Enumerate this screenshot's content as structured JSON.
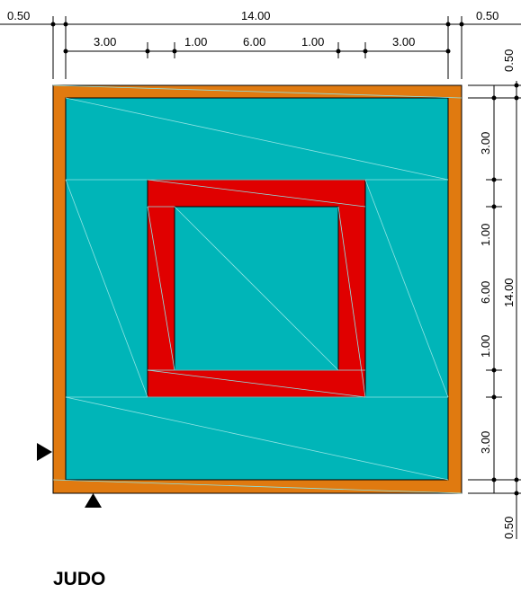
{
  "title": "JUDO",
  "colors": {
    "border": "#e07a10",
    "mat": "#00b5b8",
    "danger": "#e00000",
    "seam": "#8fe3e3",
    "line": "#000000"
  },
  "dimensions": {
    "top_overall": {
      "left_margin": "0.50",
      "total": "14.00",
      "right_margin": "0.50"
    },
    "top_segments": [
      "3.00",
      "1.00",
      "6.00",
      "1.00",
      "3.00"
    ],
    "right_overall": {
      "top_margin": "0.50",
      "total": "14.00",
      "bottom_margin": "0.50"
    },
    "right_segments": [
      "3.00",
      "1.00",
      "6.00",
      "1.00",
      "3.00"
    ]
  },
  "markers": [
    "arrow-right-marker",
    "arrow-up-marker"
  ]
}
